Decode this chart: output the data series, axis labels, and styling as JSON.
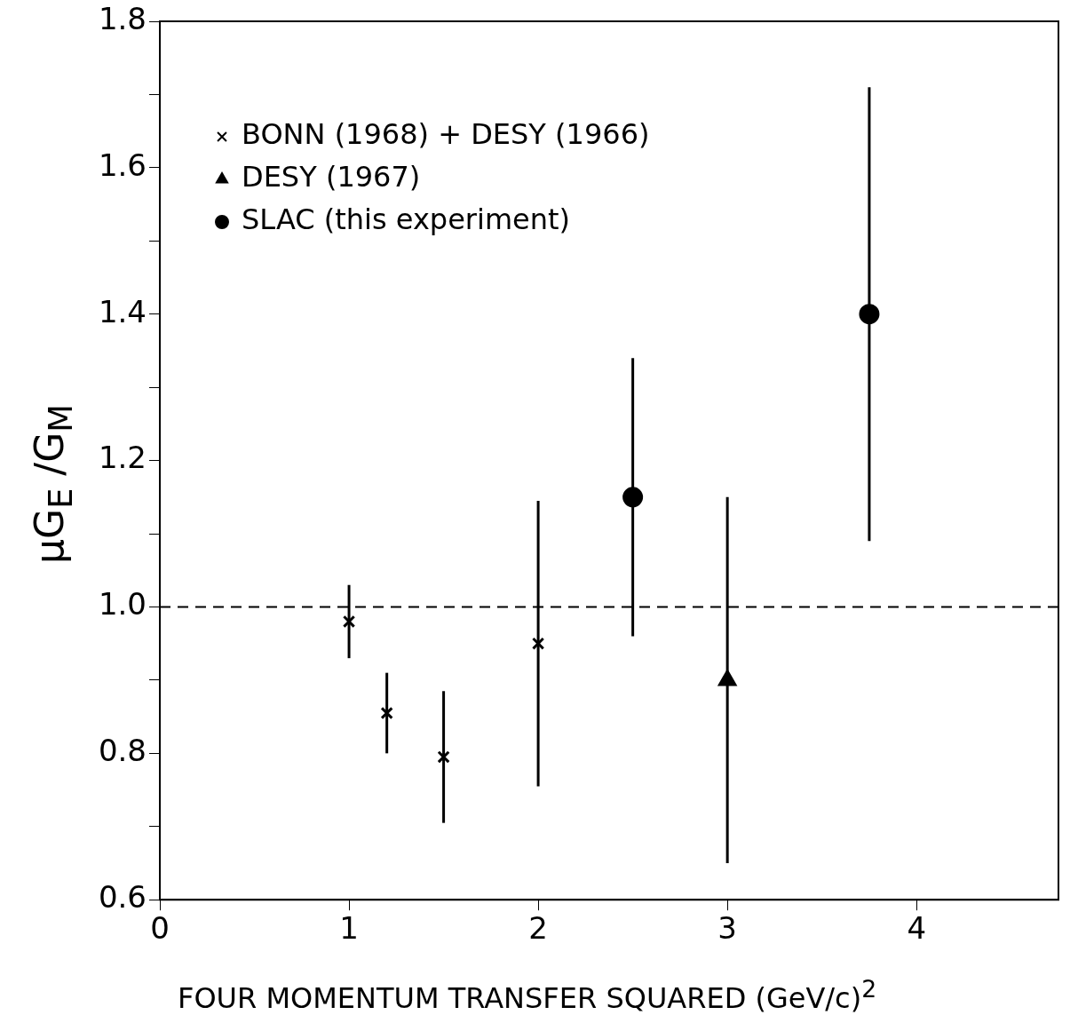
{
  "chart_data": {
    "type": "scatter",
    "xlabel": "FOUR MOMENTUM TRANSFER SQUARED (GeV/c)$^{2}$",
    "ylabel": "μG$_{E}$ /G$_{M}$",
    "series": [
      {
        "name": "BONN (1968) + DESY (1966)",
        "color": "#000000",
        "marker": "cross",
        "x": [
          1,
          1.2,
          1.5,
          2
        ],
        "values": [
          0.98,
          0.855,
          0.795,
          0.95
        ],
        "errors": [
          0.05,
          0.055,
          0.09,
          0.195
        ]
      },
      {
        "name": "DESY (1967)",
        "color": "#000000",
        "marker": "triangle",
        "x": [
          3
        ],
        "values": [
          0.9
        ],
        "errors": [
          0.25
        ]
      },
      {
        "name": "SLAC (this experiment)",
        "color": "#000000",
        "marker": "circle",
        "x": [
          2.5,
          3.75
        ],
        "values": [
          1.15,
          1.4
        ],
        "errors": [
          0.19,
          0.31
        ]
      }
    ],
    "xlim": [
      0,
      4.75
    ],
    "xticks": [
      0,
      1,
      2,
      3,
      4
    ],
    "ylim": [
      0.6,
      1.8
    ],
    "yticks": [
      0.6,
      {
        "value": 0.7,
        "label": null
      },
      0.8,
      {
        "value": 0.9,
        "label": null
      },
      {
        "value": 1,
        "label": "1.0"
      },
      {
        "value": 1.1,
        "label": null
      },
      1.2,
      {
        "value": 1.3,
        "label": null
      },
      1.4,
      {
        "value": 1.5,
        "label": null
      },
      1.6,
      {
        "value": 1.7,
        "label": null
      },
      1.8
    ],
    "ref_lines": [
      {
        "axis": "y",
        "value": 1.0,
        "line_style": "dashed"
      }
    ],
    "grid": false,
    "legend": "top left"
  }
}
